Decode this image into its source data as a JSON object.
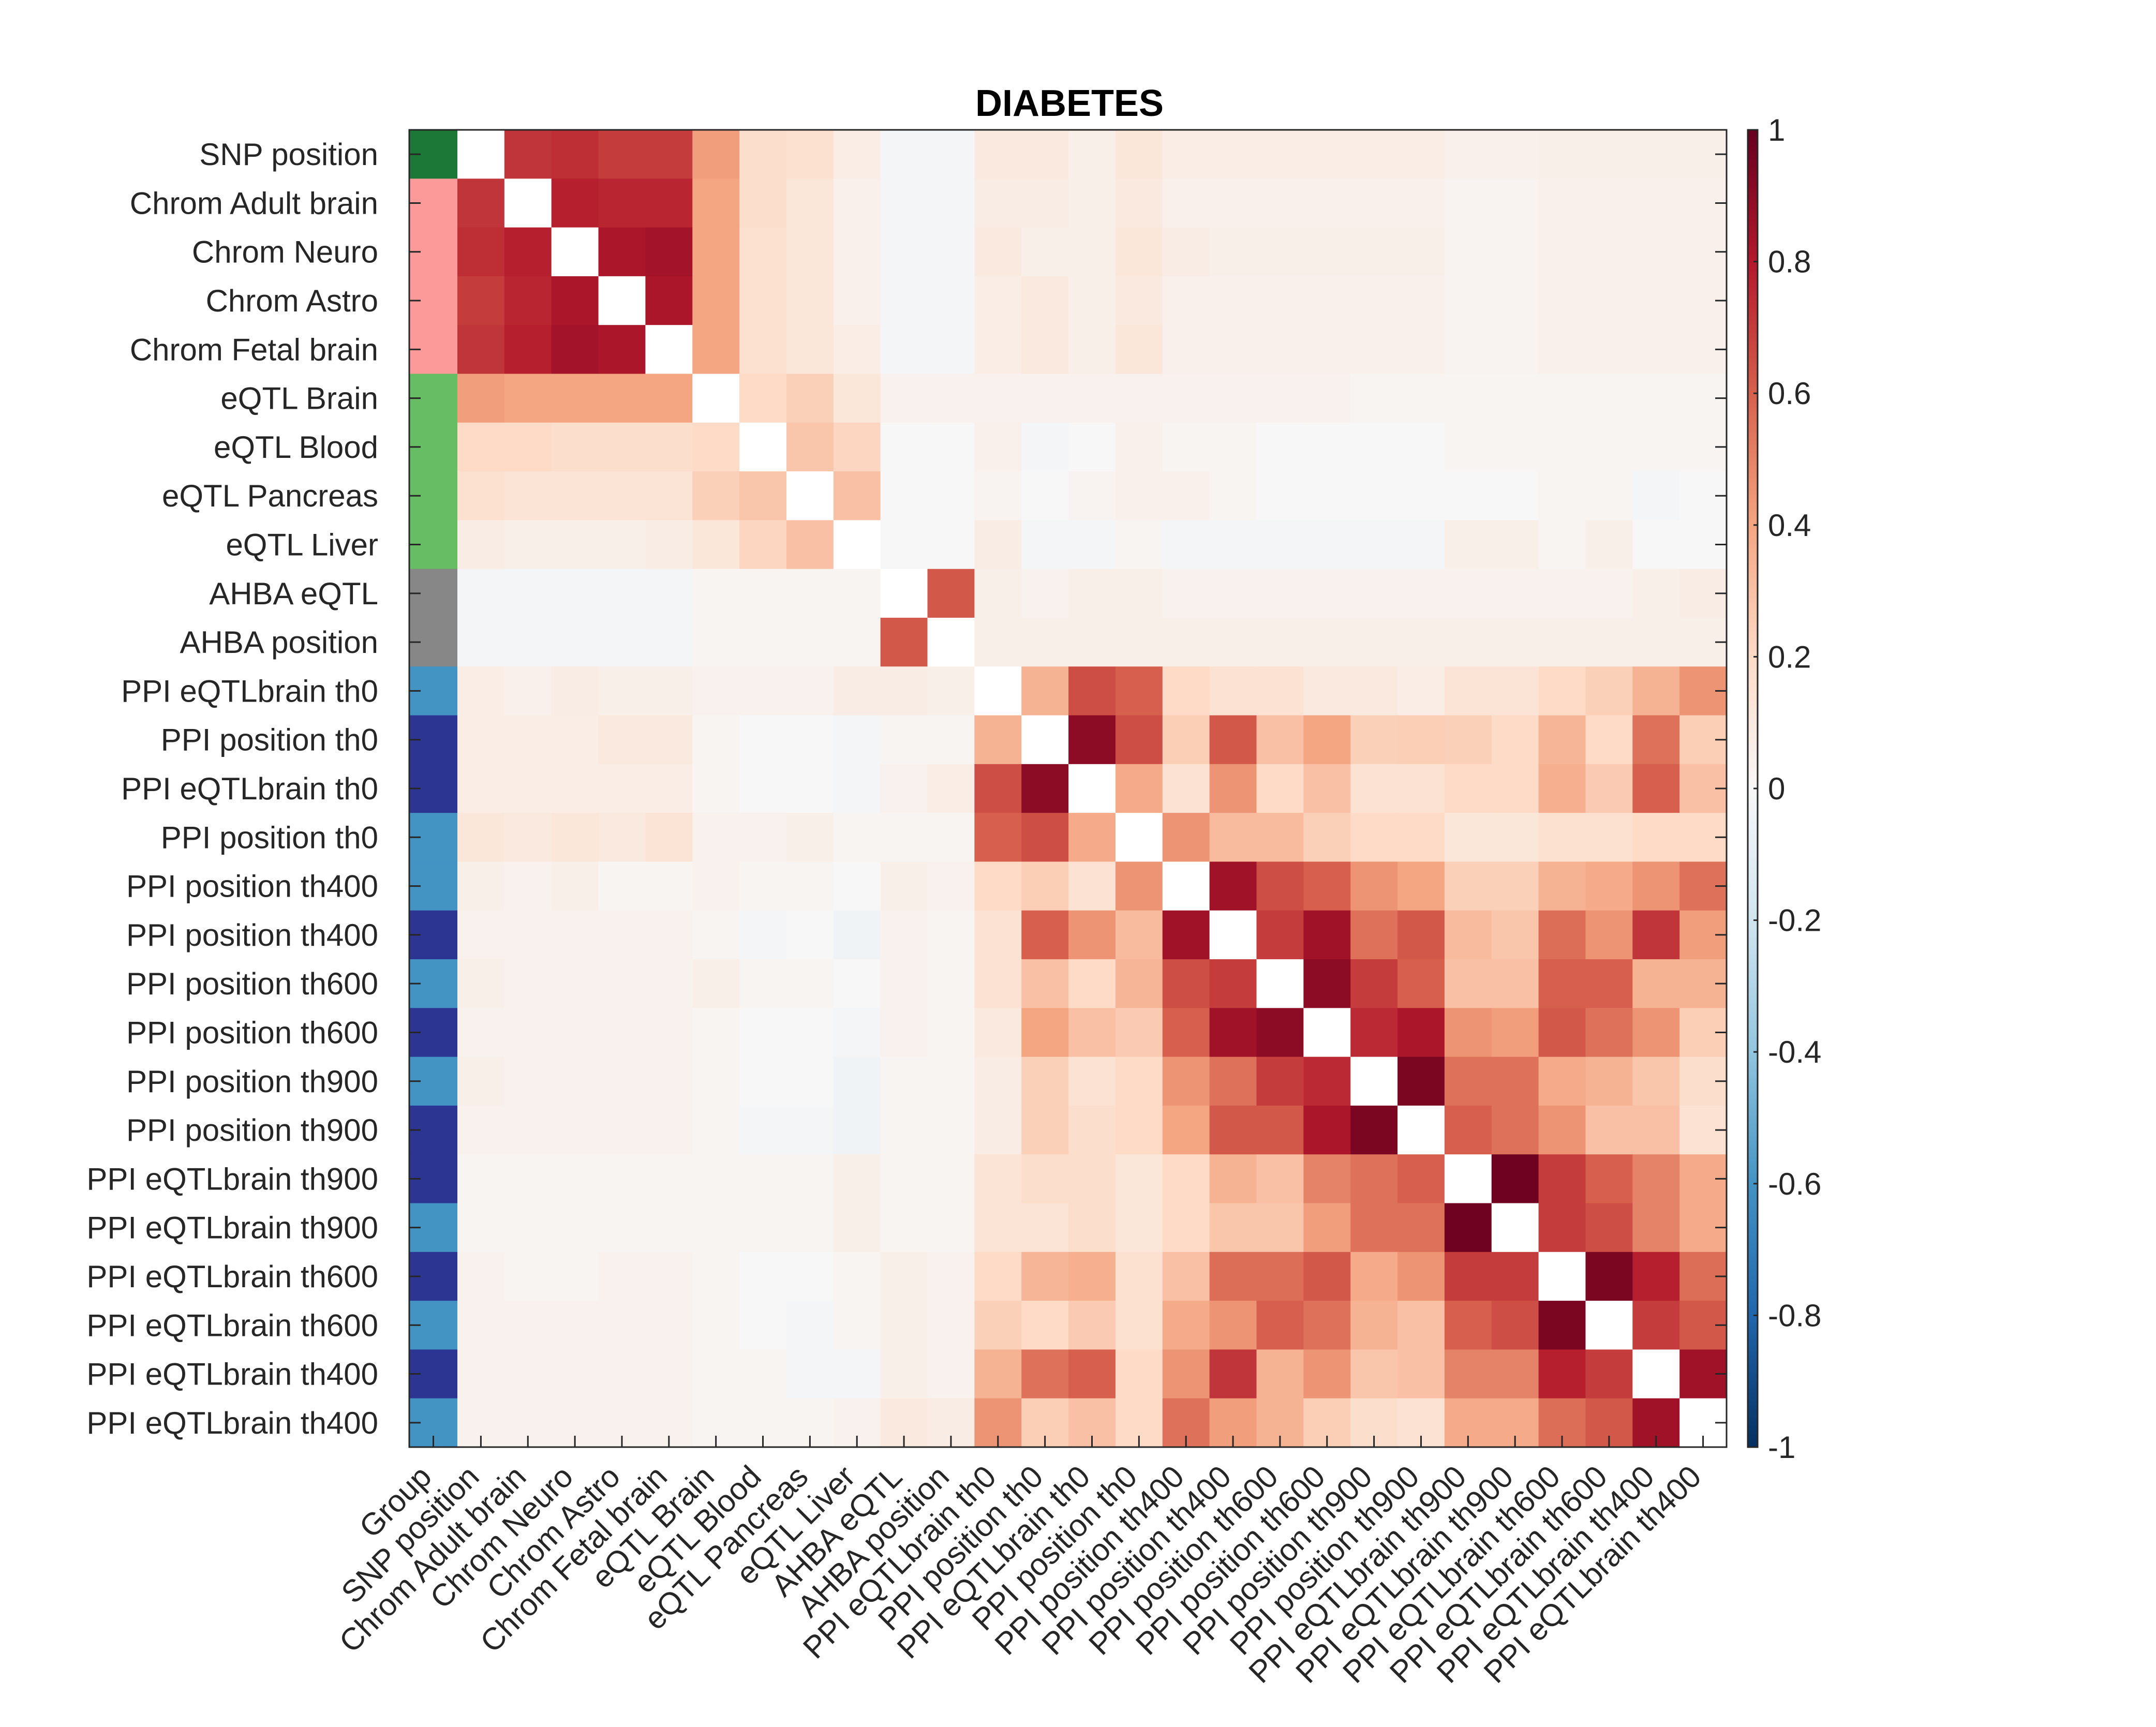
{
  "chart_data": {
    "type": "heatmap",
    "title": "DIABETES",
    "group_column_label": "Group",
    "rows": [
      "SNP position",
      "Chrom Adult brain",
      "Chrom Neuro",
      "Chrom Astro",
      "Chrom Fetal brain",
      "eQTL Brain",
      "eQTL Blood",
      "eQTL Pancreas",
      "eQTL Liver",
      "AHBA eQTL",
      "AHBA position",
      "PPI eQTLbrain th0",
      "PPI position th0",
      "PPI eQTLbrain th0",
      "PPI position th0",
      "PPI position th400",
      "PPI position th400",
      "PPI position th600",
      "PPI position th600",
      "PPI position th900",
      "PPI position th900",
      "PPI eQTLbrain th900",
      "PPI eQTLbrain th900",
      "PPI eQTLbrain th600",
      "PPI eQTLbrain th600",
      "PPI eQTLbrain th400",
      "PPI eQTLbrain th400"
    ],
    "columns": [
      "SNP position",
      "Chrom Adult brain",
      "Chrom Neuro",
      "Chrom Astro",
      "Chrom Fetal brain",
      "eQTL Brain",
      "eQTL Blood",
      "eQTL Pancreas",
      "eQTL Liver",
      "AHBA eQTL",
      "AHBA position",
      "PPI eQTLbrain th0",
      "PPI position th0",
      "PPI eQTLbrain th0",
      "PPI position th0",
      "PPI position th400",
      "PPI position th400",
      "PPI position th600",
      "PPI position th600",
      "PPI position th900",
      "PPI position th900",
      "PPI eQTLbrain th900",
      "PPI eQTLbrain th900",
      "PPI eQTLbrain th600",
      "PPI eQTLbrain th600",
      "PPI eQTLbrain th400",
      "PPI eQTLbrain th400"
    ],
    "groups": [
      "#1b7837",
      "#fb9a99",
      "#fb9a99",
      "#fb9a99",
      "#fb9a99",
      "#66bd63",
      "#66bd63",
      "#66bd63",
      "#66bd63",
      "#878787",
      "#878787",
      "#4393c3",
      "#2d3593",
      "#2d3593",
      "#4393c3",
      "#4393c3",
      "#2d3593",
      "#4393c3",
      "#2d3593",
      "#4393c3",
      "#2d3593",
      "#2d3593",
      "#4393c3",
      "#2d3593",
      "#4393c3",
      "#2d3593",
      "#4393c3"
    ],
    "values": [
      [
        0,
        0.72,
        0.74,
        0.7,
        0.7,
        0.42,
        0.18,
        0.16,
        0.07,
        -0.02,
        -0.02,
        0.1,
        0.1,
        0.06,
        0.12,
        0.07,
        0.07,
        0.07,
        0.07,
        0.07,
        0.07,
        0.05,
        0.05,
        0.06,
        0.06,
        0.06,
        0.06
      ],
      [
        0.72,
        0,
        0.78,
        0.76,
        0.76,
        0.4,
        0.18,
        0.12,
        0.05,
        -0.02,
        -0.02,
        0.08,
        0.08,
        0.06,
        0.1,
        0.05,
        0.05,
        0.05,
        0.05,
        0.05,
        0.05,
        0.03,
        0.03,
        0.05,
        0.05,
        0.05,
        0.05
      ],
      [
        0.74,
        0.78,
        0,
        0.82,
        0.84,
        0.4,
        0.16,
        0.12,
        0.05,
        -0.02,
        -0.02,
        0.1,
        0.06,
        0.06,
        0.12,
        0.08,
        0.06,
        0.06,
        0.06,
        0.06,
        0.06,
        0.03,
        0.03,
        0.05,
        0.05,
        0.05,
        0.05
      ],
      [
        0.7,
        0.76,
        0.82,
        0,
        0.82,
        0.4,
        0.16,
        0.12,
        0.05,
        -0.02,
        -0.02,
        0.07,
        0.1,
        0.06,
        0.1,
        0.05,
        0.05,
        0.05,
        0.05,
        0.05,
        0.05,
        0.03,
        0.03,
        0.05,
        0.05,
        0.05,
        0.05
      ],
      [
        0.72,
        0.78,
        0.84,
        0.82,
        0,
        0.4,
        0.16,
        0.12,
        0.07,
        -0.02,
        -0.02,
        0.07,
        0.1,
        0.06,
        0.12,
        0.05,
        0.05,
        0.05,
        0.05,
        0.05,
        0.05,
        0.03,
        0.03,
        0.05,
        0.05,
        0.05,
        0.05
      ],
      [
        0.42,
        0.4,
        0.4,
        0.4,
        0.4,
        0,
        0.2,
        0.24,
        0.12,
        0.04,
        0.04,
        0.04,
        0.04,
        0.04,
        0.04,
        0.04,
        0.04,
        0.04,
        0.04,
        0.02,
        0.02,
        0.02,
        0.02,
        0.02,
        0.02,
        0.02,
        0.02
      ],
      [
        0.2,
        0.2,
        0.18,
        0.18,
        0.18,
        0.2,
        0,
        0.28,
        0.22,
        0,
        0,
        0.05,
        -0.02,
        0,
        0.05,
        0.02,
        0.02,
        0,
        0,
        0,
        0,
        0.02,
        0.02,
        0.02,
        0.02,
        0.02,
        0.02
      ],
      [
        0.16,
        0.14,
        0.14,
        0.14,
        0.14,
        0.24,
        0.28,
        0,
        0.3,
        0,
        0,
        0.03,
        0,
        0.03,
        0.05,
        0.05,
        0.02,
        0,
        0,
        0,
        0,
        0,
        0,
        0.02,
        0.02,
        -0.02,
        0
      ],
      [
        0.08,
        0.06,
        0.06,
        0.06,
        0.08,
        0.12,
        0.22,
        0.3,
        0,
        0,
        0,
        0.08,
        -0.02,
        -0.02,
        0.02,
        -0.02,
        -0.02,
        -0.02,
        -0.02,
        -0.02,
        -0.02,
        0.06,
        0.06,
        0.02,
        0.06,
        0,
        0
      ],
      [
        -0.02,
        -0.02,
        -0.02,
        -0.02,
        -0.02,
        0.02,
        0.02,
        0.02,
        0.02,
        0,
        0.62,
        0.06,
        0.04,
        0.06,
        0.06,
        0.04,
        0.04,
        0.04,
        0.04,
        0.04,
        0.04,
        0.04,
        0.04,
        0.04,
        0.04,
        0.06,
        0.08
      ],
      [
        -0.02,
        -0.02,
        -0.02,
        -0.02,
        -0.02,
        0.02,
        0.02,
        0.02,
        0.02,
        0.62,
        0,
        0.06,
        0.06,
        0.06,
        0.06,
        0.06,
        0.06,
        0.06,
        0.06,
        0.06,
        0.06,
        0.06,
        0.06,
        0.06,
        0.06,
        0.06,
        0.06
      ],
      [
        0.07,
        0.05,
        0.08,
        0.06,
        0.06,
        0.04,
        0.04,
        0.04,
        0.08,
        0.08,
        0.06,
        0,
        0.35,
        0.65,
        0.6,
        0.2,
        0.15,
        0.15,
        0.1,
        0.1,
        0.07,
        0.14,
        0.14,
        0.2,
        0.24,
        0.35,
        0.45
      ],
      [
        0.07,
        0.07,
        0.07,
        0.1,
        0.1,
        0.02,
        0,
        0,
        -0.02,
        0.02,
        0.02,
        0.35,
        0,
        0.9,
        0.65,
        0.25,
        0.62,
        0.3,
        0.4,
        0.24,
        0.25,
        0.24,
        0.2,
        0.34,
        0.2,
        0.55,
        0.25
      ],
      [
        0.07,
        0.07,
        0.07,
        0.07,
        0.07,
        0.02,
        0,
        0,
        -0.02,
        0.04,
        0.07,
        0.65,
        0.9,
        0,
        0.38,
        0.15,
        0.45,
        0.2,
        0.3,
        0.15,
        0.15,
        0.2,
        0.2,
        0.36,
        0.26,
        0.6,
        0.3
      ],
      [
        0.12,
        0.1,
        0.12,
        0.1,
        0.14,
        0.04,
        0.04,
        0.06,
        0.02,
        0.02,
        0.02,
        0.6,
        0.65,
        0.38,
        0,
        0.45,
        0.32,
        0.32,
        0.24,
        0.2,
        0.2,
        0.12,
        0.12,
        0.16,
        0.16,
        0.2,
        0.2
      ],
      [
        0.06,
        0.04,
        0.06,
        0.02,
        0.02,
        0.04,
        0.02,
        0.02,
        0,
        0.06,
        0.04,
        0.2,
        0.25,
        0.15,
        0.45,
        0,
        0.85,
        0.65,
        0.6,
        0.45,
        0.4,
        0.24,
        0.24,
        0.35,
        0.38,
        0.45,
        0.55
      ],
      [
        0.04,
        0.04,
        0.04,
        0.04,
        0.04,
        0.02,
        -0.02,
        0,
        -0.04,
        0.04,
        0.02,
        0.15,
        0.6,
        0.45,
        0.32,
        0.85,
        0,
        0.7,
        0.85,
        0.55,
        0.62,
        0.32,
        0.28,
        0.56,
        0.45,
        0.72,
        0.42
      ],
      [
        0.06,
        0.04,
        0.04,
        0.04,
        0.04,
        0.06,
        0.02,
        0.02,
        0,
        0.04,
        0.02,
        0.15,
        0.3,
        0.2,
        0.34,
        0.65,
        0.7,
        0,
        0.9,
        0.7,
        0.6,
        0.3,
        0.3,
        0.6,
        0.6,
        0.35,
        0.35
      ],
      [
        0.04,
        0.04,
        0.04,
        0.04,
        0.04,
        0.02,
        0,
        0,
        -0.02,
        0.04,
        0.02,
        0.1,
        0.4,
        0.3,
        0.26,
        0.6,
        0.85,
        0.9,
        0,
        0.75,
        0.82,
        0.45,
        0.42,
        0.62,
        0.55,
        0.45,
        0.25
      ],
      [
        0.06,
        0.04,
        0.04,
        0.04,
        0.04,
        0.02,
        0,
        0,
        -0.04,
        0.02,
        0.02,
        0.08,
        0.24,
        0.15,
        0.2,
        0.45,
        0.55,
        0.7,
        0.75,
        0,
        0.95,
        0.55,
        0.55,
        0.38,
        0.35,
        0.28,
        0.18
      ],
      [
        0.04,
        0.04,
        0.04,
        0.04,
        0.04,
        0.02,
        -0.02,
        -0.02,
        -0.04,
        0.02,
        0.02,
        0.08,
        0.24,
        0.18,
        0.2,
        0.4,
        0.62,
        0.62,
        0.82,
        0.95,
        0,
        0.6,
        0.55,
        0.45,
        0.3,
        0.3,
        0.15
      ],
      [
        0.02,
        0.02,
        0.02,
        0.02,
        0.02,
        0.02,
        0.02,
        0.02,
        0.06,
        0.02,
        0.02,
        0.14,
        0.18,
        0.18,
        0.12,
        0.2,
        0.35,
        0.3,
        0.5,
        0.55,
        0.6,
        0,
        0.98,
        0.7,
        0.6,
        0.5,
        0.38
      ],
      [
        0.02,
        0.02,
        0.02,
        0.02,
        0.02,
        0.02,
        0.02,
        0.02,
        0.06,
        0.02,
        0.02,
        0.14,
        0.14,
        0.18,
        0.12,
        0.2,
        0.28,
        0.28,
        0.42,
        0.55,
        0.55,
        0.98,
        0,
        0.7,
        0.65,
        0.5,
        0.38
      ],
      [
        0.04,
        0.02,
        0.02,
        0.04,
        0.04,
        0.02,
        0,
        0,
        0.02,
        0.06,
        0.04,
        0.2,
        0.34,
        0.36,
        0.16,
        0.3,
        0.56,
        0.56,
        0.62,
        0.38,
        0.45,
        0.7,
        0.7,
        0,
        0.95,
        0.78,
        0.56
      ],
      [
        0.04,
        0.04,
        0.04,
        0.04,
        0.04,
        0.02,
        0,
        -0.02,
        0.02,
        0.06,
        0.04,
        0.24,
        0.2,
        0.26,
        0.16,
        0.38,
        0.45,
        0.6,
        0.55,
        0.35,
        0.3,
        0.6,
        0.65,
        0.95,
        0,
        0.7,
        0.62
      ],
      [
        0.04,
        0.04,
        0.04,
        0.04,
        0.04,
        0.02,
        0.02,
        -0.02,
        -0.02,
        0.06,
        0.04,
        0.35,
        0.55,
        0.6,
        0.2,
        0.45,
        0.72,
        0.35,
        0.45,
        0.28,
        0.3,
        0.5,
        0.5,
        0.78,
        0.7,
        0,
        0.85
      ],
      [
        0.04,
        0.04,
        0.04,
        0.04,
        0.04,
        0.02,
        0.02,
        0.02,
        0.04,
        0.1,
        0.08,
        0.45,
        0.25,
        0.3,
        0.2,
        0.55,
        0.42,
        0.35,
        0.25,
        0.18,
        0.15,
        0.38,
        0.38,
        0.56,
        0.62,
        0.85,
        0
      ]
    ],
    "colorbar": {
      "range": [
        -1,
        1
      ],
      "ticks": [
        "1",
        "0.8",
        "0.6",
        "0.4",
        "0.2",
        "0",
        "-0.2",
        "-0.4",
        "-0.6",
        "-0.8",
        "-1"
      ],
      "colormap": "diverging blue-white-red (RdBu)",
      "stops": [
        "#053061",
        "#2166ac",
        "#4393c3",
        "#92c5de",
        "#d1e5f0",
        "#f7f7f7",
        "#fddbc7",
        "#f4a582",
        "#d6604d",
        "#b2182b",
        "#67001f"
      ]
    },
    "grid": false,
    "legend": "none"
  }
}
